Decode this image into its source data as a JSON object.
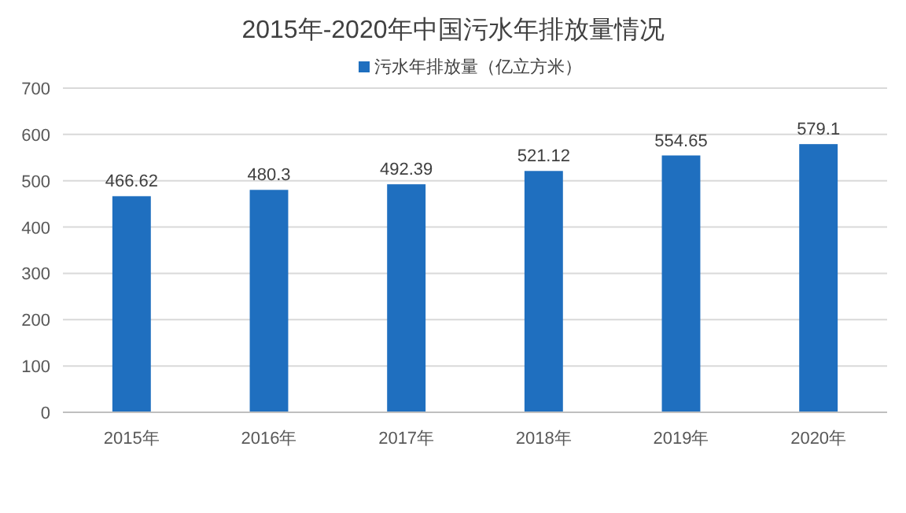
{
  "chart_data": {
    "type": "bar",
    "title": "2015年-2020年中国污水年排放量情况",
    "categories": [
      "2015年",
      "2016年",
      "2017年",
      "2018年",
      "2019年",
      "2020年"
    ],
    "series": [
      {
        "name": "污水年排放量（亿立方米）",
        "color": "#1f6fbf",
        "values": [
          466.62,
          480.3,
          492.39,
          521.12,
          554.65,
          579.1
        ]
      }
    ],
    "ylim": [
      0,
      700
    ],
    "yticks": [
      0,
      100,
      200,
      300,
      400,
      500,
      600,
      700
    ],
    "grid": "y",
    "legend": "top",
    "data_labels": true
  }
}
